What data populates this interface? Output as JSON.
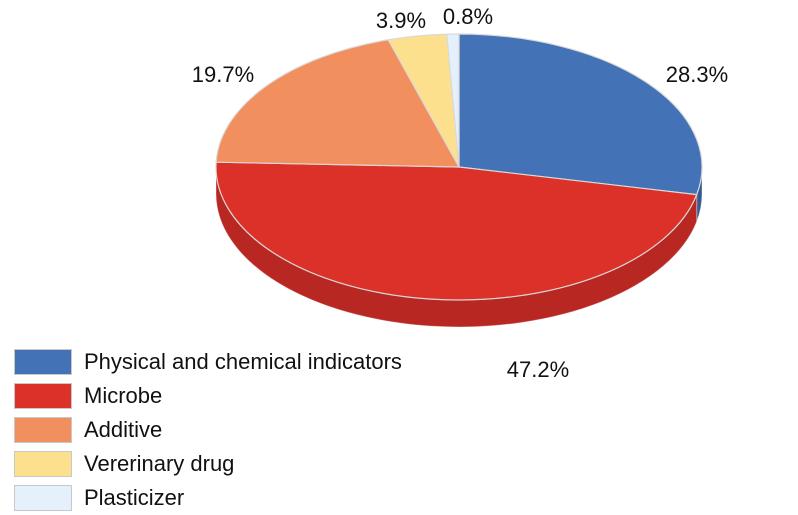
{
  "chart_data": {
    "type": "pie",
    "title": "",
    "labels": [
      "Physical and chemical indicators",
      "Microbe",
      "Additive",
      "Vererinary drug",
      "Plasticizer"
    ],
    "values": [
      28.3,
      47.2,
      19.7,
      3.9,
      0.8
    ],
    "value_labels": [
      "28.3%",
      "47.2%",
      "19.7%",
      "3.9%",
      "0.8%"
    ],
    "colors": [
      "#4472b6",
      "#dc3128",
      "#f28f5e",
      "#fde08d",
      "#e4f0fb"
    ],
    "side_colors": [
      "#345a94",
      "#b92722",
      "#d8764a",
      "#e4c56f",
      "#c9d8e8"
    ],
    "three_d": true,
    "legend_position": "bottom-left"
  }
}
